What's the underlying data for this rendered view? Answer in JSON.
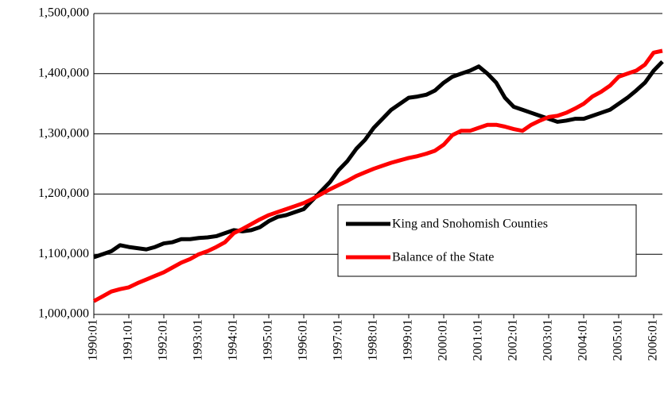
{
  "chart_data": {
    "type": "line",
    "categories": [
      "1990:01",
      null,
      null,
      null,
      "1991:01",
      null,
      null,
      null,
      "1992:01",
      null,
      null,
      null,
      "1993:01",
      null,
      null,
      null,
      "1994:01",
      null,
      null,
      null,
      "1995:01",
      null,
      null,
      null,
      "1996:01",
      null,
      null,
      null,
      "1997:01",
      null,
      null,
      null,
      "1998:01",
      null,
      null,
      null,
      "1999:01",
      null,
      null,
      null,
      "2000:01",
      null,
      null,
      null,
      "2001:01",
      null,
      null,
      null,
      "2002:01",
      null,
      null,
      null,
      "2003:01",
      null,
      null,
      null,
      "2004:01",
      null,
      null,
      null,
      "2005:01",
      null,
      null,
      null,
      "2006:01",
      null
    ],
    "series": [
      {
        "name": "King and Snohomish Counties",
        "color": "#000000",
        "values": [
          1095000,
          1100000,
          1105000,
          1115000,
          1112000,
          1110000,
          1108000,
          1112000,
          1118000,
          1120000,
          1125000,
          1125000,
          1127000,
          1128000,
          1130000,
          1135000,
          1140000,
          1138000,
          1140000,
          1145000,
          1155000,
          1162000,
          1165000,
          1170000,
          1175000,
          1190000,
          1205000,
          1220000,
          1240000,
          1255000,
          1275000,
          1290000,
          1310000,
          1325000,
          1340000,
          1350000,
          1360000,
          1362000,
          1365000,
          1372000,
          1385000,
          1395000,
          1400000,
          1405000,
          1412000,
          1400000,
          1385000,
          1360000,
          1345000,
          1340000,
          1335000,
          1330000,
          1325000,
          1320000,
          1322000,
          1325000,
          1325000,
          1330000,
          1335000,
          1340000,
          1350000,
          1360000,
          1372000,
          1385000,
          1405000,
          1420000
        ]
      },
      {
        "name": "Balance of the State",
        "color": "#ff0000",
        "values": [
          1022000,
          1030000,
          1038000,
          1042000,
          1045000,
          1052000,
          1058000,
          1064000,
          1070000,
          1078000,
          1086000,
          1092000,
          1100000,
          1105000,
          1112000,
          1120000,
          1135000,
          1142000,
          1150000,
          1158000,
          1165000,
          1170000,
          1175000,
          1180000,
          1185000,
          1192000,
          1200000,
          1208000,
          1215000,
          1222000,
          1230000,
          1236000,
          1242000,
          1247000,
          1252000,
          1256000,
          1260000,
          1263000,
          1267000,
          1272000,
          1282000,
          1298000,
          1305000,
          1305000,
          1310000,
          1315000,
          1315000,
          1312000,
          1308000,
          1305000,
          1315000,
          1322000,
          1328000,
          1330000,
          1335000,
          1342000,
          1350000,
          1362000,
          1370000,
          1380000,
          1395000,
          1400000,
          1405000,
          1415000,
          1435000,
          1438000
        ]
      }
    ],
    "ylim": [
      1000000,
      1500000
    ],
    "yticks": [
      {
        "value": 1000000,
        "label": "1,000,000"
      },
      {
        "value": 1100000,
        "label": "1,100,000"
      },
      {
        "value": 1200000,
        "label": "1,200,000"
      },
      {
        "value": 1300000,
        "label": "1,300,000"
      },
      {
        "value": 1400000,
        "label": "1,400,000"
      },
      {
        "value": 1500000,
        "label": "1,500,000"
      }
    ],
    "grid": true,
    "legend": "lower right"
  }
}
